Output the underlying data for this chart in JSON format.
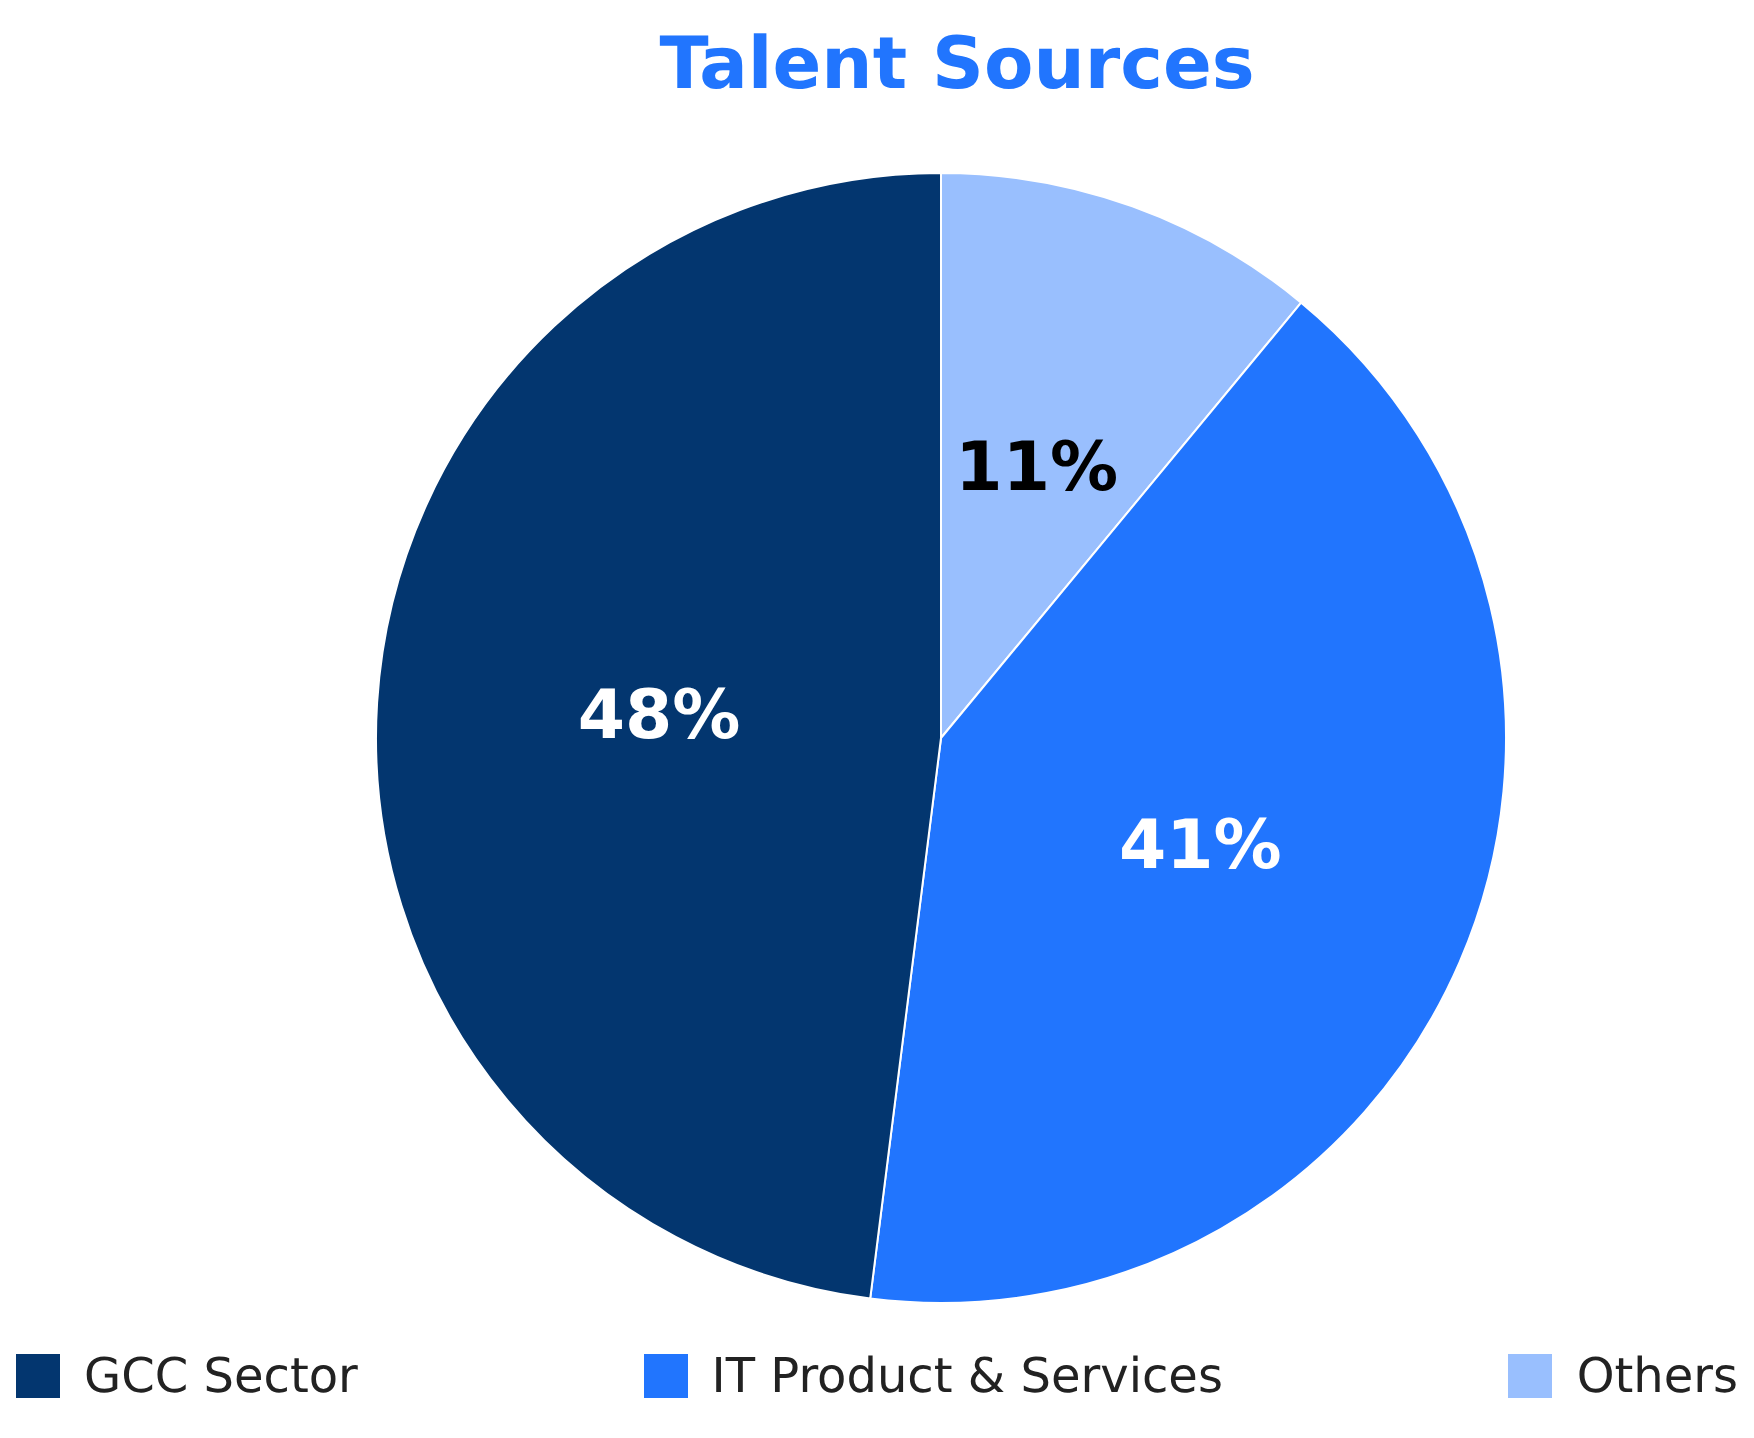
{
  "chart_data": {
    "type": "pie",
    "title": "Talent Sources",
    "categories": [
      "GCC Sector",
      "IT Product & Services",
      "Others"
    ],
    "values": [
      48,
      41,
      11
    ],
    "colors": [
      "#03366f",
      "#2175fe",
      "#99bffe"
    ],
    "value_labels": [
      "48%",
      "41%",
      "11%"
    ],
    "legend": "bottom"
  }
}
